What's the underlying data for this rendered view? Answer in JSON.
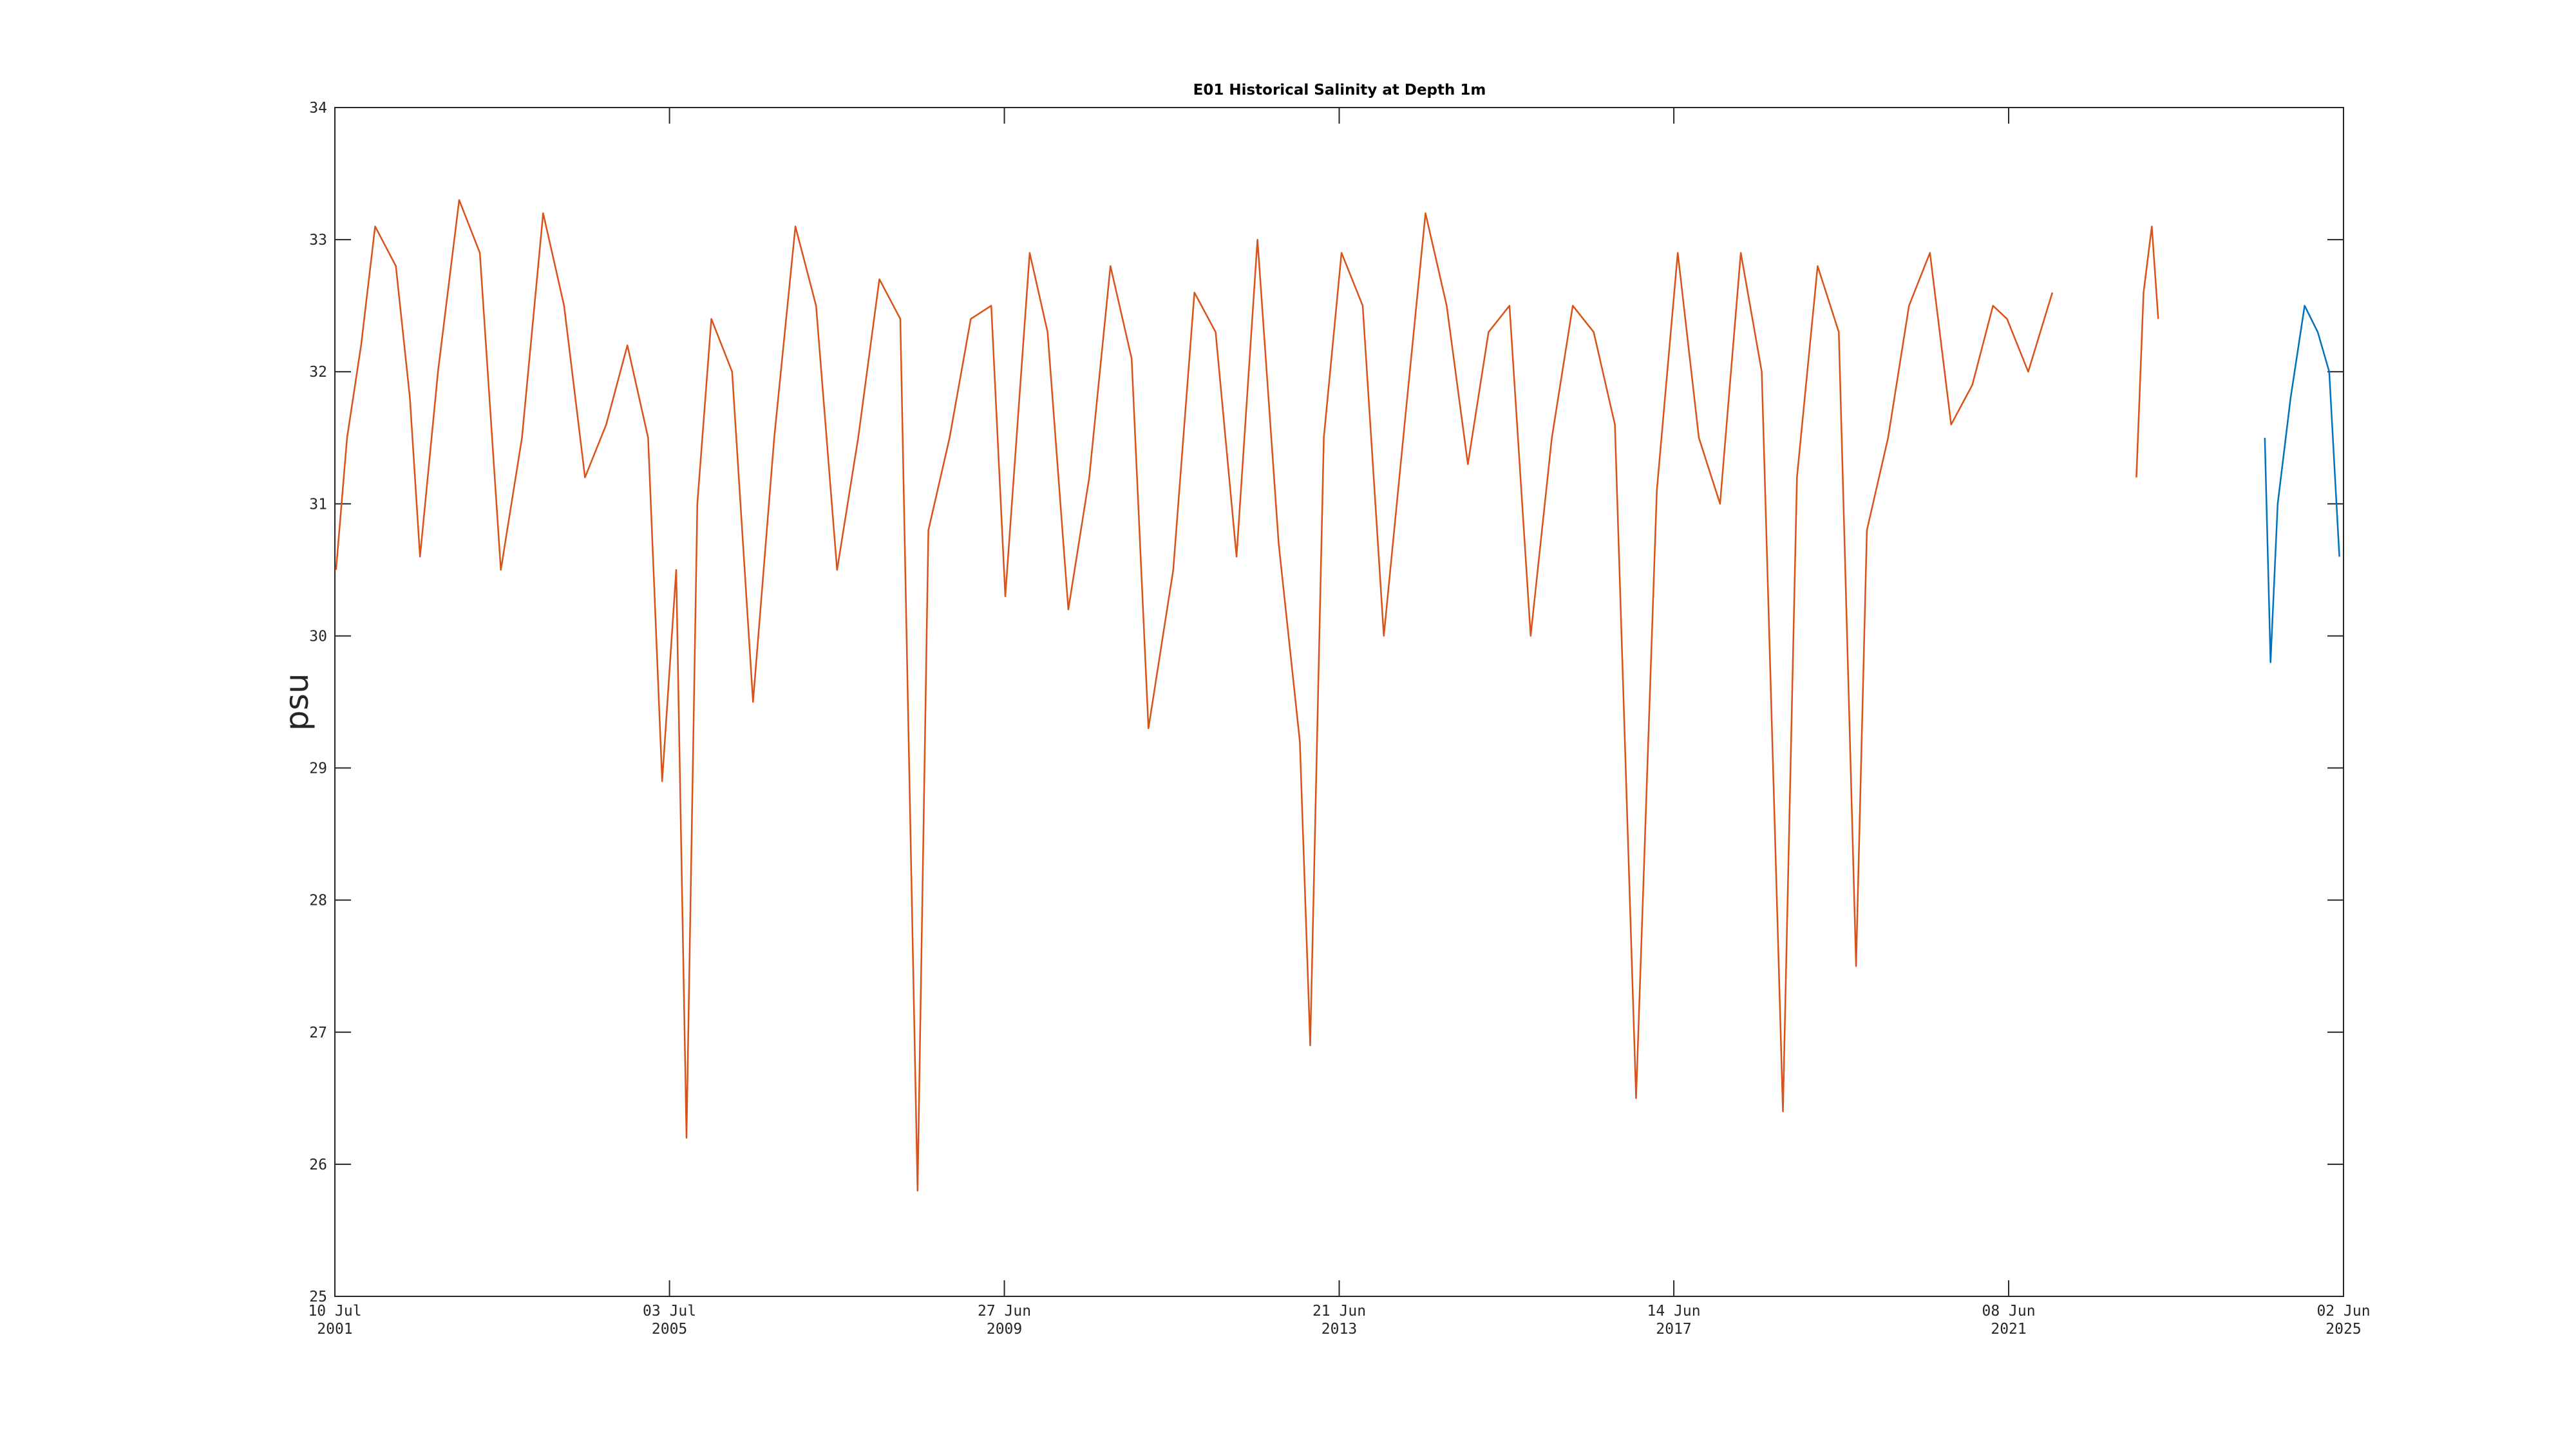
{
  "chart_data": {
    "type": "line",
    "title": "E01 Historical Salinity at Depth 1m",
    "ylabel": "psu",
    "xlim": [
      "2001-07-10",
      "2025-06-02"
    ],
    "ylim": [
      25,
      34
    ],
    "yticks": [
      25,
      26,
      27,
      28,
      29,
      30,
      31,
      32,
      33,
      34
    ],
    "xticks": [
      {
        "value": "2001-07-10",
        "label": "10 Jul 2001"
      },
      {
        "value": "2005-07-03",
        "label": "03 Jul 2005"
      },
      {
        "value": "2009-06-27",
        "label": "27 Jun 2009"
      },
      {
        "value": "2013-06-21",
        "label": "21 Jun 2013"
      },
      {
        "value": "2017-06-14",
        "label": "14 Jun 2017"
      },
      {
        "value": "2021-06-08",
        "label": "08 Jun 2021"
      },
      {
        "value": "2025-06-02",
        "label": "02 Jun 2025"
      }
    ],
    "grid": false,
    "series": [
      {
        "color": "#d95319",
        "x": [
          "2001-07-15",
          "2001-09-01",
          "2001-11-01",
          "2002-01-01",
          "2002-04-01",
          "2002-06-01",
          "2002-07-15",
          "2002-10-01",
          "2003-01-01",
          "2003-04-01",
          "2003-07-01",
          "2003-10-01",
          "2004-01-01",
          "2004-04-01",
          "2004-07-01",
          "2004-10-01",
          "2005-01-01",
          "2005-04-01",
          "2005-06-01",
          "2005-08-01",
          "2005-09-15",
          "2005-11-01",
          "2006-01-01",
          "2006-04-01",
          "2006-07-01",
          "2006-10-01",
          "2007-01-01",
          "2007-04-01",
          "2007-07-01",
          "2007-10-01",
          "2008-01-01",
          "2008-04-01",
          "2008-06-15",
          "2008-08-01",
          "2008-11-01",
          "2009-02-01",
          "2009-05-01",
          "2009-07-01",
          "2009-10-15",
          "2010-01-01",
          "2010-04-01",
          "2010-07-01",
          "2010-10-01",
          "2011-01-01",
          "2011-03-15",
          "2011-07-01",
          "2011-10-01",
          "2012-01-01",
          "2012-04-01",
          "2012-07-01",
          "2012-10-01",
          "2013-01-01",
          "2013-02-15",
          "2013-04-15",
          "2013-07-01",
          "2013-10-01",
          "2014-01-01",
          "2014-04-01",
          "2014-07-01",
          "2014-10-01",
          "2015-01-01",
          "2015-04-01",
          "2015-07-01",
          "2015-10-01",
          "2016-01-01",
          "2016-04-01",
          "2016-07-01",
          "2016-10-01",
          "2017-01-01",
          "2017-04-01",
          "2017-07-01",
          "2017-10-01",
          "2018-01-01",
          "2018-04-01",
          "2018-07-01",
          "2018-10-01",
          "2018-12-01",
          "2019-03-01",
          "2019-06-01",
          "2019-08-15",
          "2019-10-01",
          "2020-01-01",
          "2020-04-01",
          "2020-07-01",
          "2020-10-01",
          "2021-01-01",
          "2021-04-01",
          "2021-06-01",
          "2021-09-01",
          "2021-12-15",
          "2022-06-01",
          "2022-12-15",
          "2023-01-15",
          "2023-02-20",
          "2023-03-20"
        ],
        "values": [
          30.5,
          31.5,
          32.2,
          33.1,
          32.8,
          31.8,
          30.6,
          32.0,
          33.3,
          32.9,
          30.5,
          31.5,
          33.2,
          32.5,
          31.2,
          31.6,
          32.2,
          31.5,
          28.9,
          30.5,
          26.2,
          31.0,
          32.4,
          32.0,
          29.5,
          31.5,
          33.1,
          32.5,
          30.5,
          31.5,
          32.7,
          32.4,
          25.8,
          30.8,
          31.5,
          32.4,
          32.5,
          30.3,
          32.9,
          32.3,
          30.2,
          31.2,
          32.8,
          32.1,
          29.3,
          30.5,
          32.6,
          32.3,
          30.6,
          33.0,
          30.7,
          29.2,
          26.9,
          31.5,
          32.9,
          32.5,
          30.0,
          31.6,
          33.2,
          32.5,
          31.3,
          32.3,
          32.5,
          30.0,
          31.5,
          32.5,
          32.3,
          31.6,
          26.5,
          31.1,
          32.9,
          31.5,
          31.0,
          32.9,
          32.0,
          26.4,
          31.2,
          32.8,
          32.3,
          27.5,
          30.8,
          31.5,
          32.5,
          32.9,
          31.6,
          31.9,
          32.5,
          32.4,
          32.0,
          32.6,
          null,
          31.2,
          32.6,
          33.1,
          32.4
        ]
      },
      {
        "color": "#0072bd",
        "x": [
          "2024-06-25",
          "2024-07-20",
          "2024-08-20",
          "2024-10-15",
          "2024-12-15",
          "2025-02-10",
          "2025-04-01",
          "2025-05-15"
        ],
        "values": [
          31.5,
          29.8,
          31.0,
          31.8,
          32.5,
          32.3,
          32.0,
          30.6
        ]
      }
    ]
  }
}
